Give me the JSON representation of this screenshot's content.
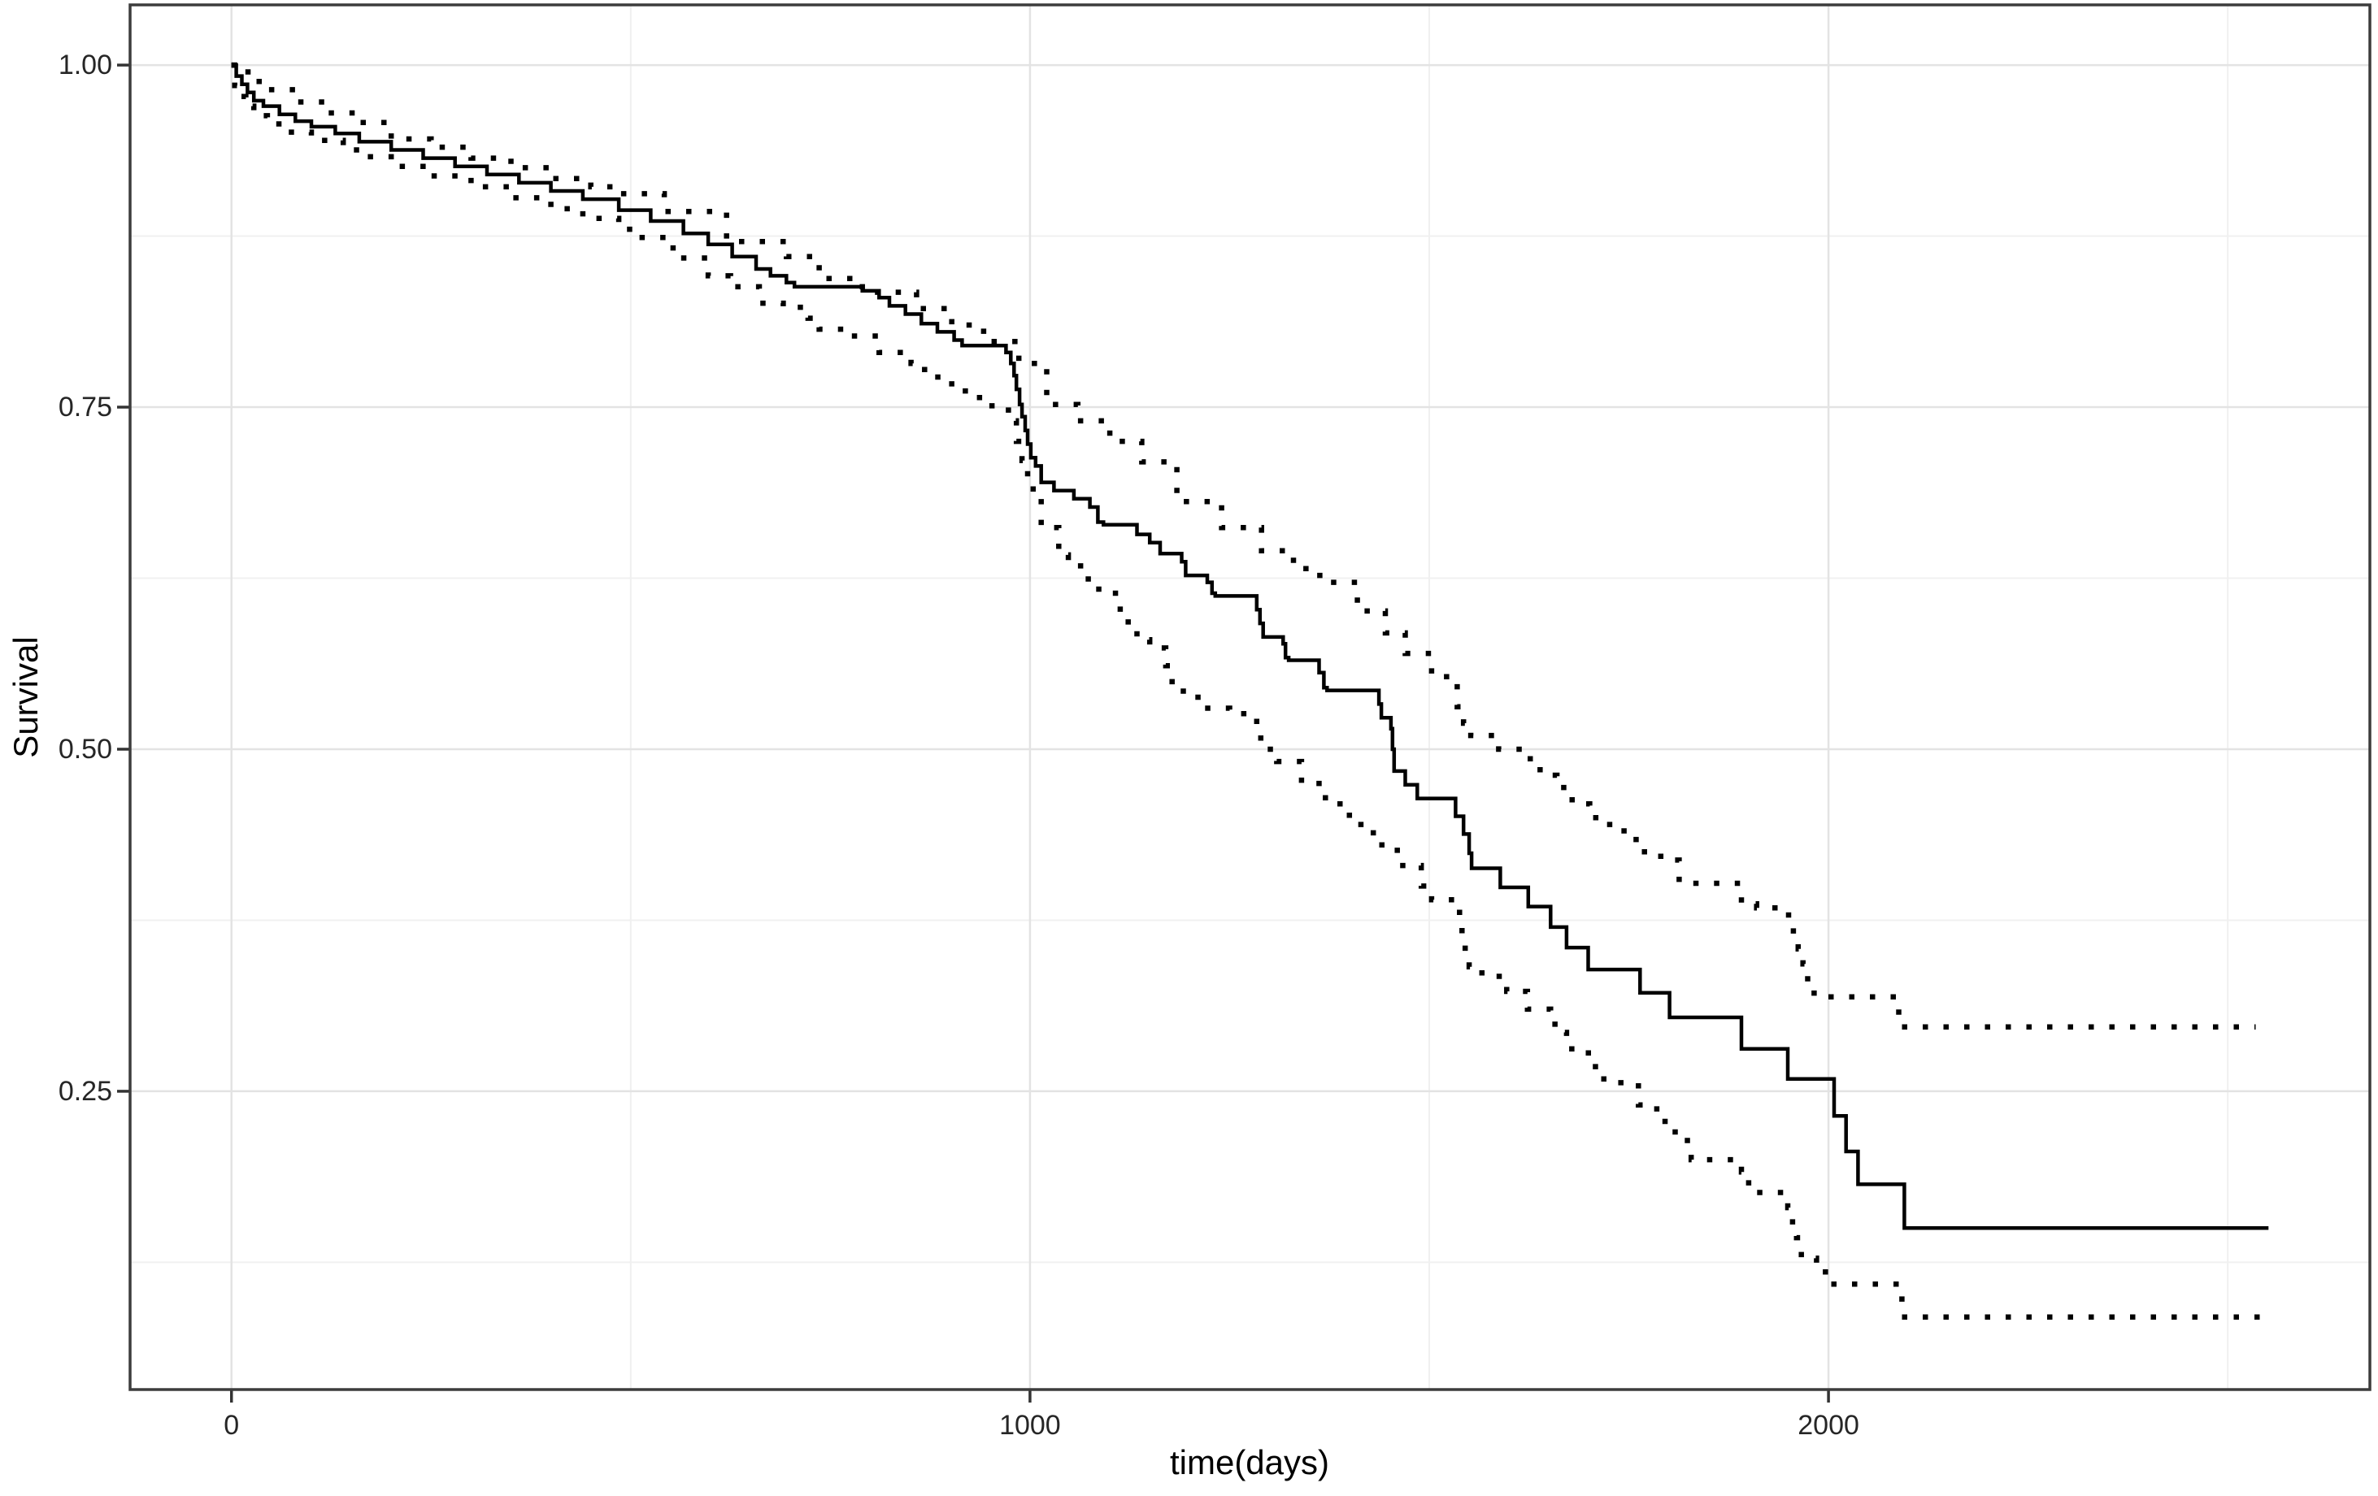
{
  "figure": {
    "background": "#ffffff"
  },
  "style": {
    "line_color": "#000000",
    "major_grid_color": "#e3e3e3",
    "minor_grid_color": "#f0f0f0",
    "panel_border_color": "#3c3c3c",
    "tick_mark_color": "#333333",
    "tick_label_color": "#262626"
  },
  "chart_data": {
    "type": "line",
    "subtype": "kaplan-meier-step-with-dotted-confidence-bands",
    "title": "",
    "xlabel": "time(days)",
    "ylabel": "Survival",
    "legend": "none",
    "grid": "on",
    "x_domain": [
      -127,
      2678
    ],
    "y_domain": [
      0.032,
      1.044
    ],
    "x_ticks": [
      {
        "value": 0,
        "label": "0"
      },
      {
        "value": 1000,
        "label": "1000"
      },
      {
        "value": 2000,
        "label": "2000"
      }
    ],
    "y_ticks": [
      {
        "value": 1.0,
        "label": "1.00"
      },
      {
        "value": 0.75,
        "label": "0.75"
      },
      {
        "value": 0.5,
        "label": "0.50"
      },
      {
        "value": 0.25,
        "label": "0.25"
      }
    ],
    "x_minor_ticks": [
      500,
      1500,
      2500
    ],
    "y_minor_ticks": [
      0.875,
      0.625,
      0.375,
      0.125
    ],
    "series": [
      {
        "name": "survival-estimate",
        "line_style": "solid",
        "points": [
          [
            0,
            1.0
          ],
          [
            6,
            0.992
          ],
          [
            13,
            0.986
          ],
          [
            20,
            0.98
          ],
          [
            28,
            0.974
          ],
          [
            40,
            0.97
          ],
          [
            60,
            0.964
          ],
          [
            80,
            0.959
          ],
          [
            100,
            0.955
          ],
          [
            130,
            0.95
          ],
          [
            160,
            0.944
          ],
          [
            200,
            0.938
          ],
          [
            240,
            0.932
          ],
          [
            280,
            0.926
          ],
          [
            320,
            0.92
          ],
          [
            360,
            0.914
          ],
          [
            400,
            0.908
          ],
          [
            440,
            0.902
          ],
          [
            485,
            0.894
          ],
          [
            525,
            0.886
          ],
          [
            566,
            0.877
          ],
          [
            597,
            0.869
          ],
          [
            627,
            0.86
          ],
          [
            657,
            0.851
          ],
          [
            675,
            0.846
          ],
          [
            695,
            0.841
          ],
          [
            705,
            0.838
          ],
          [
            790,
            0.835
          ],
          [
            811,
            0.83
          ],
          [
            824,
            0.824
          ],
          [
            844,
            0.818
          ],
          [
            864,
            0.811
          ],
          [
            884,
            0.805
          ],
          [
            905,
            0.799
          ],
          [
            915,
            0.795
          ],
          [
            970,
            0.79
          ],
          [
            976,
            0.782
          ],
          [
            980,
            0.773
          ],
          [
            983,
            0.763
          ],
          [
            987,
            0.752
          ],
          [
            990,
            0.743
          ],
          [
            994,
            0.733
          ],
          [
            997,
            0.723
          ],
          [
            1001,
            0.713
          ],
          [
            1007,
            0.707
          ],
          [
            1014,
            0.695
          ],
          [
            1030,
            0.689
          ],
          [
            1055,
            0.683
          ],
          [
            1075,
            0.677
          ],
          [
            1085,
            0.666
          ],
          [
            1092,
            0.664
          ],
          [
            1134,
            0.657
          ],
          [
            1150,
            0.651
          ],
          [
            1163,
            0.643
          ],
          [
            1190,
            0.637
          ],
          [
            1195,
            0.627
          ],
          [
            1222,
            0.622
          ],
          [
            1228,
            0.614
          ],
          [
            1232,
            0.612
          ],
          [
            1284,
            0.602
          ],
          [
            1288,
            0.592
          ],
          [
            1292,
            0.582
          ],
          [
            1317,
            0.577
          ],
          [
            1320,
            0.567
          ],
          [
            1324,
            0.565
          ],
          [
            1362,
            0.556
          ],
          [
            1368,
            0.545
          ],
          [
            1372,
            0.543
          ],
          [
            1437,
            0.533
          ],
          [
            1440,
            0.523
          ],
          [
            1452,
            0.515
          ],
          [
            1454,
            0.5
          ],
          [
            1456,
            0.484
          ],
          [
            1470,
            0.474
          ],
          [
            1485,
            0.464
          ],
          [
            1533,
            0.451
          ],
          [
            1543,
            0.438
          ],
          [
            1550,
            0.424
          ],
          [
            1553,
            0.413
          ],
          [
            1589,
            0.399
          ],
          [
            1624,
            0.385
          ],
          [
            1652,
            0.37
          ],
          [
            1672,
            0.355
          ],
          [
            1699,
            0.339
          ],
          [
            1764,
            0.322
          ],
          [
            1801,
            0.304
          ],
          [
            1891,
            0.281
          ],
          [
            1949,
            0.259
          ],
          [
            2007,
            0.232
          ],
          [
            2022,
            0.206
          ],
          [
            2037,
            0.182
          ],
          [
            2095,
            0.15
          ],
          [
            2551,
            0.15
          ]
        ]
      },
      {
        "name": "upper-confidence-bound",
        "line_style": "dotted",
        "points": [
          [
            0,
            1.0
          ],
          [
            10,
            0.995
          ],
          [
            25,
            0.988
          ],
          [
            45,
            0.982
          ],
          [
            80,
            0.973
          ],
          [
            120,
            0.965
          ],
          [
            160,
            0.958
          ],
          [
            200,
            0.946
          ],
          [
            250,
            0.94
          ],
          [
            300,
            0.932
          ],
          [
            350,
            0.925
          ],
          [
            400,
            0.917
          ],
          [
            450,
            0.911
          ],
          [
            485,
            0.906
          ],
          [
            542,
            0.893
          ],
          [
            620,
            0.871
          ],
          [
            695,
            0.86
          ],
          [
            736,
            0.844
          ],
          [
            790,
            0.834
          ],
          [
            858,
            0.822
          ],
          [
            902,
            0.81
          ],
          [
            942,
            0.798
          ],
          [
            986,
            0.782
          ],
          [
            1021,
            0.752
          ],
          [
            1060,
            0.74
          ],
          [
            1100,
            0.725
          ],
          [
            1140,
            0.71
          ],
          [
            1184,
            0.681
          ],
          [
            1240,
            0.662
          ],
          [
            1290,
            0.645
          ],
          [
            1330,
            0.632
          ],
          [
            1363,
            0.622
          ],
          [
            1410,
            0.601
          ],
          [
            1445,
            0.585
          ],
          [
            1470,
            0.57
          ],
          [
            1503,
            0.553
          ],
          [
            1535,
            0.531
          ],
          [
            1543,
            0.519
          ],
          [
            1552,
            0.51
          ],
          [
            1587,
            0.5
          ],
          [
            1623,
            0.493
          ],
          [
            1635,
            0.485
          ],
          [
            1652,
            0.481
          ],
          [
            1660,
            0.472
          ],
          [
            1672,
            0.463
          ],
          [
            1689,
            0.46
          ],
          [
            1701,
            0.45
          ],
          [
            1716,
            0.445
          ],
          [
            1744,
            0.434
          ],
          [
            1765,
            0.425
          ],
          [
            1790,
            0.419
          ],
          [
            1813,
            0.402
          ],
          [
            1891,
            0.387
          ],
          [
            1910,
            0.384
          ],
          [
            1950,
            0.376
          ],
          [
            1956,
            0.363
          ],
          [
            1962,
            0.354
          ],
          [
            1968,
            0.343
          ],
          [
            1974,
            0.33
          ],
          [
            1982,
            0.319
          ],
          [
            2088,
            0.297
          ],
          [
            2535,
            0.297
          ]
        ]
      },
      {
        "name": "lower-confidence-bound",
        "line_style": "dotted",
        "points": [
          [
            0,
            1.0
          ],
          [
            4,
            0.985
          ],
          [
            10,
            0.977
          ],
          [
            18,
            0.97
          ],
          [
            28,
            0.963
          ],
          [
            45,
            0.957
          ],
          [
            70,
            0.951
          ],
          [
            100,
            0.945
          ],
          [
            140,
            0.938
          ],
          [
            170,
            0.933
          ],
          [
            200,
            0.926
          ],
          [
            250,
            0.919
          ],
          [
            300,
            0.911
          ],
          [
            350,
            0.903
          ],
          [
            400,
            0.895
          ],
          [
            440,
            0.888
          ],
          [
            485,
            0.88
          ],
          [
            510,
            0.874
          ],
          [
            553,
            0.859
          ],
          [
            597,
            0.846
          ],
          [
            625,
            0.838
          ],
          [
            661,
            0.826
          ],
          [
            691,
            0.823
          ],
          [
            722,
            0.815
          ],
          [
            736,
            0.807
          ],
          [
            770,
            0.802
          ],
          [
            811,
            0.79
          ],
          [
            851,
            0.782
          ],
          [
            868,
            0.772
          ],
          [
            892,
            0.767
          ],
          [
            919,
            0.757
          ],
          [
            946,
            0.751
          ],
          [
            973,
            0.74
          ],
          [
            983,
            0.725
          ],
          [
            990,
            0.711
          ],
          [
            997,
            0.697
          ],
          [
            1004,
            0.685
          ],
          [
            1014,
            0.662
          ],
          [
            1036,
            0.642
          ],
          [
            1048,
            0.634
          ],
          [
            1073,
            0.617
          ],
          [
            1093,
            0.614
          ],
          [
            1113,
            0.595
          ],
          [
            1123,
            0.587
          ],
          [
            1134,
            0.58
          ],
          [
            1150,
            0.574
          ],
          [
            1170,
            0.561
          ],
          [
            1178,
            0.546
          ],
          [
            1192,
            0.538
          ],
          [
            1215,
            0.53
          ],
          [
            1250,
            0.526
          ],
          [
            1274,
            0.523
          ],
          [
            1284,
            0.513
          ],
          [
            1289,
            0.5
          ],
          [
            1309,
            0.491
          ],
          [
            1340,
            0.475
          ],
          [
            1370,
            0.46
          ],
          [
            1400,
            0.445
          ],
          [
            1430,
            0.43
          ],
          [
            1460,
            0.415
          ],
          [
            1490,
            0.4
          ],
          [
            1503,
            0.39
          ],
          [
            1535,
            0.387
          ],
          [
            1538,
            0.378
          ],
          [
            1541,
            0.365
          ],
          [
            1545,
            0.352
          ],
          [
            1550,
            0.341
          ],
          [
            1566,
            0.334
          ],
          [
            1597,
            0.323
          ],
          [
            1623,
            0.31
          ],
          [
            1652,
            0.299
          ],
          [
            1668,
            0.293
          ],
          [
            1672,
            0.281
          ],
          [
            1689,
            0.278
          ],
          [
            1703,
            0.268
          ],
          [
            1713,
            0.259
          ],
          [
            1740,
            0.254
          ],
          [
            1762,
            0.24
          ],
          [
            1785,
            0.228
          ],
          [
            1808,
            0.214
          ],
          [
            1828,
            0.2
          ],
          [
            1891,
            0.191
          ],
          [
            1900,
            0.176
          ],
          [
            1949,
            0.165
          ],
          [
            1955,
            0.15
          ],
          [
            1960,
            0.143
          ],
          [
            1966,
            0.128
          ],
          [
            1985,
            0.118
          ],
          [
            2001,
            0.109
          ],
          [
            2092,
            0.085
          ],
          [
            2545,
            0.085
          ]
        ]
      }
    ]
  }
}
